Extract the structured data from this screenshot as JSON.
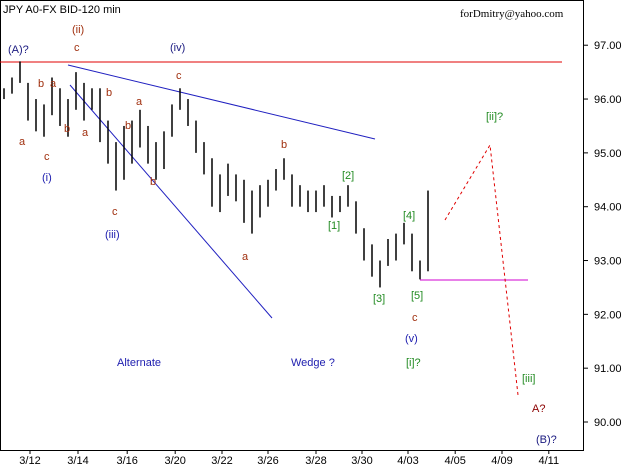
{
  "chart_data": {
    "type": "ohlc",
    "title": "JPY A0-FX BID-120 min",
    "author": "forDmitry@yahoo.com",
    "color": "#000000",
    "x": [
      0,
      1,
      2,
      3,
      4,
      5,
      6,
      7,
      8,
      9,
      10,
      11,
      12,
      13,
      14,
      15,
      16,
      17,
      18,
      19,
      20,
      21,
      22,
      23,
      24,
      25,
      26,
      27,
      28,
      29,
      30,
      31,
      32,
      33,
      34,
      35,
      36,
      37,
      38,
      39,
      40,
      41,
      42,
      43,
      44,
      45,
      46,
      47,
      48,
      49,
      50,
      51,
      52,
      53
    ],
    "high": [
      96.2,
      96.4,
      96.7,
      96.3,
      96.0,
      95.9,
      96.4,
      96.2,
      96.0,
      96.5,
      96.3,
      96.2,
      96.2,
      95.6,
      95.2,
      95.5,
      95.6,
      95.8,
      95.5,
      95.2,
      95.4,
      95.9,
      96.2,
      96.0,
      95.6,
      95.2,
      94.9,
      94.6,
      94.8,
      94.6,
      94.5,
      94.3,
      94.4,
      94.5,
      94.7,
      94.9,
      94.6,
      94.4,
      94.3,
      94.3,
      94.4,
      94.2,
      94.2,
      94.4,
      94.1,
      93.6,
      93.3,
      93.0,
      93.4,
      93.5,
      93.7,
      93.5,
      93.0,
      94.3
    ],
    "low": [
      96.0,
      96.1,
      96.3,
      95.6,
      95.4,
      95.3,
      95.7,
      95.5,
      95.3,
      95.8,
      95.6,
      95.8,
      95.2,
      94.8,
      94.3,
      94.5,
      94.8,
      95.1,
      94.8,
      94.5,
      94.7,
      95.3,
      95.8,
      95.5,
      95.0,
      94.6,
      94.0,
      93.9,
      94.2,
      94.1,
      93.7,
      93.5,
      93.8,
      94.0,
      94.3,
      94.5,
      94.0,
      94.0,
      93.9,
      93.9,
      94.0,
      93.8,
      93.9,
      94.0,
      93.5,
      93.0,
      92.7,
      92.5,
      92.9,
      93.0,
      93.3,
      92.8,
      92.65,
      92.8
    ],
    "xlim": [
      -0.5,
      72.5
    ],
    "xticks": [
      {
        "value": 3.25,
        "label": "3/12"
      },
      {
        "value": 9.25,
        "label": "3/14"
      },
      {
        "value": 15.4,
        "label": "3/16"
      },
      {
        "value": 21.4,
        "label": "3/20"
      },
      {
        "value": 27.25,
        "label": "3/22"
      },
      {
        "value": 33,
        "label": "3/26"
      },
      {
        "value": 39,
        "label": "3/28"
      },
      {
        "value": 44.75,
        "label": "3/30"
      },
      {
        "value": 50.5,
        "label": "4/03"
      },
      {
        "value": 56.4,
        "label": "4/05"
      },
      {
        "value": 62.25,
        "label": "4/09"
      },
      {
        "value": 68.1,
        "label": "4/11"
      }
    ],
    "ylim": [
      89.48,
      97.84
    ],
    "yticks": [
      {
        "value": 90,
        "label": "90.00"
      },
      {
        "value": 91,
        "label": "91.00"
      },
      {
        "value": 92,
        "label": "92.00"
      },
      {
        "value": 93,
        "label": "93.00"
      },
      {
        "value": 94,
        "label": "94.00"
      },
      {
        "value": 95,
        "label": "95.00"
      },
      {
        "value": 96,
        "label": "96.00"
      },
      {
        "value": 97,
        "label": "97.00"
      }
    ],
    "annotations": [
      "(A)?",
      "(ii)",
      "c",
      "(iv)",
      "c",
      "b",
      "a",
      "b",
      "a",
      "b",
      "a",
      "b",
      "a",
      "c",
      "(i)",
      "c",
      "(iii)",
      "b",
      "b",
      "a",
      "[2]",
      "[1]",
      "[4]",
      "[3]",
      "[5]",
      "c",
      "(v)",
      "[i]?",
      "[ii]?",
      "[iii]",
      "A?",
      "(B)?",
      "Alternate",
      "Wedge ?"
    ]
  }
}
